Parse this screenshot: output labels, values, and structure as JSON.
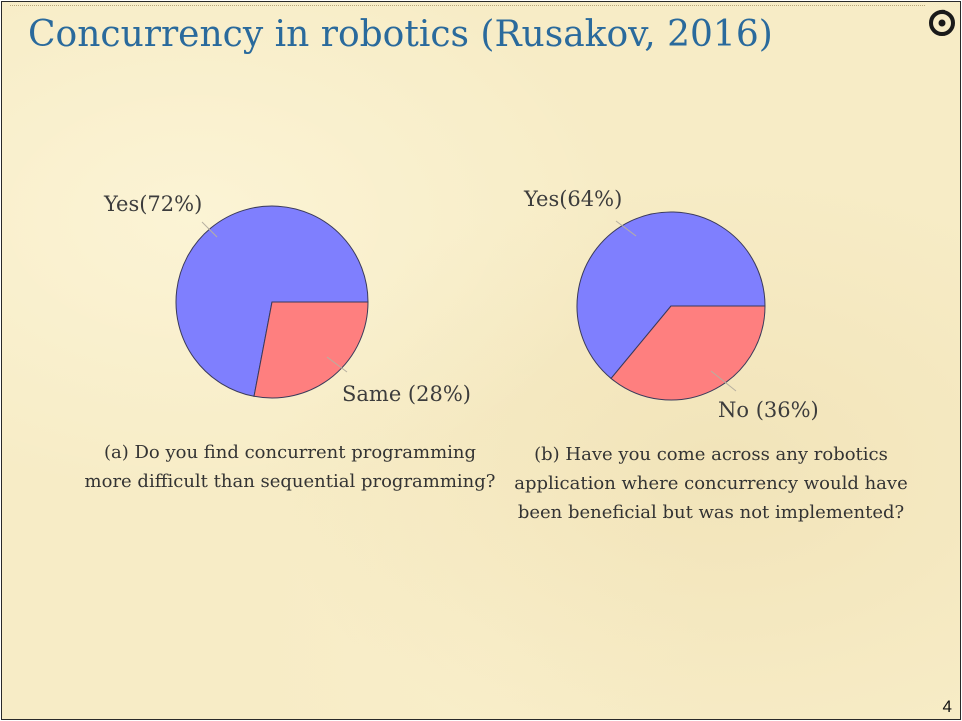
{
  "slide": {
    "title": "Concurrency in robotics (Rusakov, 2016)",
    "page_number": "4"
  },
  "colors": {
    "title": "#2a6a9c",
    "yes_slice": "#7f7ffe",
    "other_slice": "#fe7f7f",
    "background": "#f7ecc6"
  },
  "chart_data": [
    {
      "type": "pie",
      "caption": "(a) Do you find concurrent programming more difficult than sequential programming?",
      "slices": [
        {
          "label": "Yes(72%)",
          "value": 72,
          "color": "#7f7ffe"
        },
        {
          "label": "Same (28%)",
          "value": 28,
          "color": "#fe7f7f"
        }
      ]
    },
    {
      "type": "pie",
      "caption": "(b) Have you come across any robotics application where concurrency would have been beneficial but was not implemented?",
      "slices": [
        {
          "label": "Yes(64%)",
          "value": 64,
          "color": "#7f7ffe"
        },
        {
          "label": "No (36%)",
          "value": 36,
          "color": "#fe7f7f"
        }
      ]
    }
  ]
}
